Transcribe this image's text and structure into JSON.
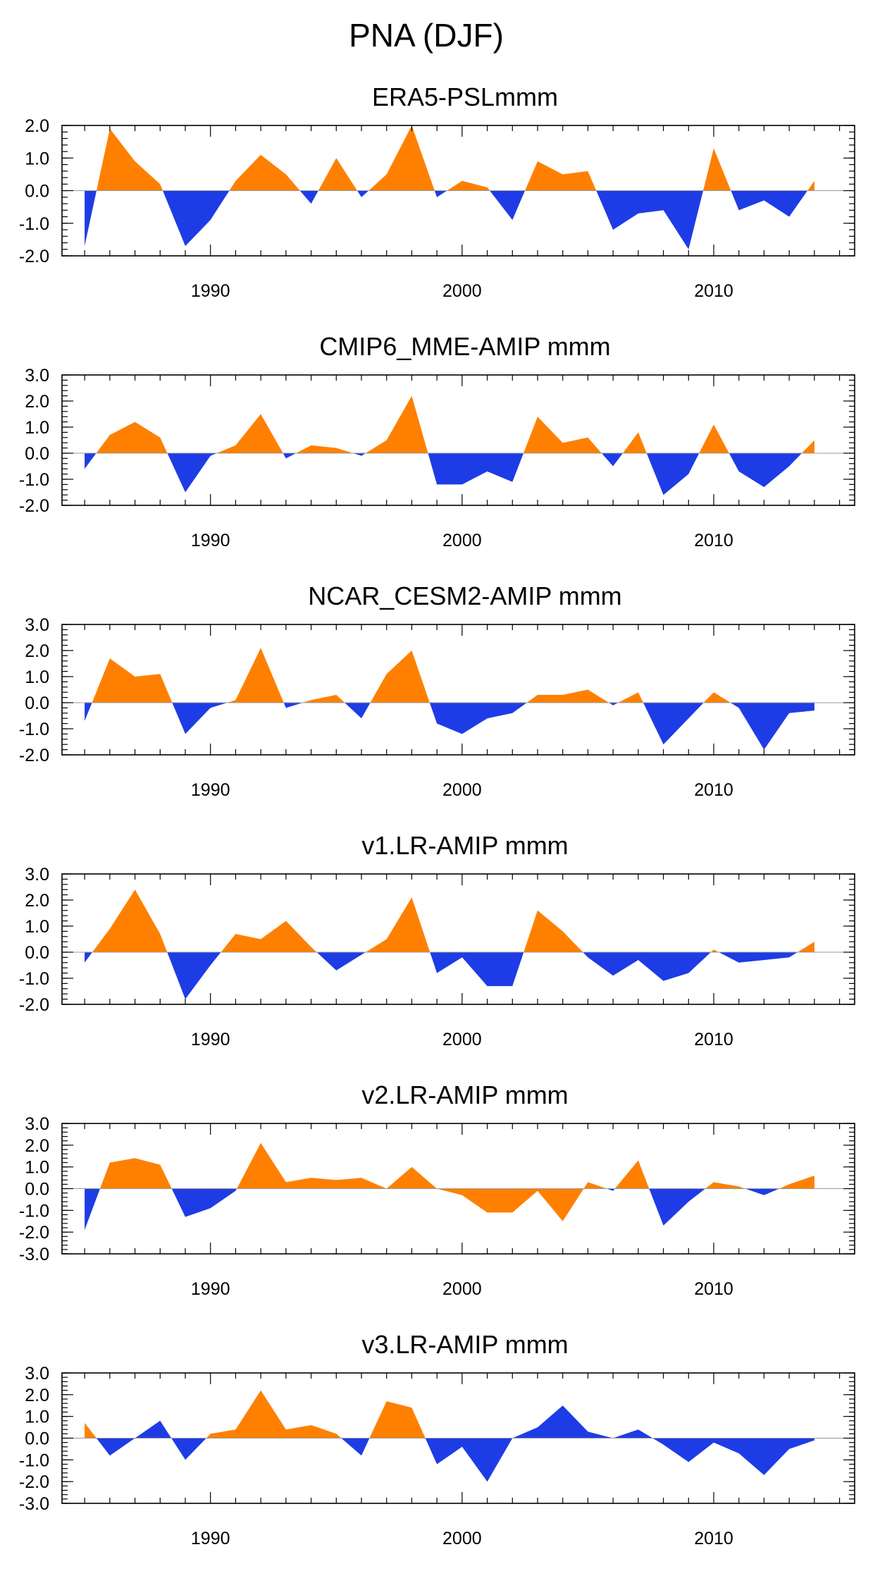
{
  "title": "PNA (DJF)",
  "colors": {
    "positive": "#FF8000",
    "negative": "#1E3CE6"
  },
  "chart_data": [
    {
      "type": "area",
      "title": "ERA5-PSLmmm",
      "x": [
        1985,
        1986,
        1987,
        1988,
        1989,
        1990,
        1991,
        1992,
        1993,
        1994,
        1995,
        1996,
        1997,
        1998,
        1999,
        2000,
        2001,
        2002,
        2003,
        2004,
        2005,
        2006,
        2007,
        2008,
        2009,
        2010,
        2011,
        2012,
        2013,
        2014
      ],
      "values": [
        -1.7,
        1.9,
        0.9,
        0.2,
        -1.7,
        -0.9,
        0.3,
        1.1,
        0.5,
        -0.4,
        1.0,
        -0.2,
        0.5,
        2.0,
        -0.2,
        0.3,
        0.1,
        -0.9,
        0.9,
        0.5,
        0.6,
        -1.2,
        -0.7,
        -0.6,
        -1.8,
        1.3,
        -0.6,
        -0.3,
        -0.8,
        0.3
      ],
      "ylim": [
        -2.0,
        2.0
      ],
      "yticks": [
        "2.0",
        "1.0",
        "0.0",
        "-1.0",
        "-2.0"
      ],
      "xticks": [
        "1990",
        "2000",
        "2010"
      ]
    },
    {
      "type": "area",
      "title": "CMIP6_MME-AMIP  mmm",
      "x": [
        1985,
        1986,
        1987,
        1988,
        1989,
        1990,
        1991,
        1992,
        1993,
        1994,
        1995,
        1996,
        1997,
        1998,
        1999,
        2000,
        2001,
        2002,
        2003,
        2004,
        2005,
        2006,
        2007,
        2008,
        2009,
        2010,
        2011,
        2012,
        2013,
        2014
      ],
      "values": [
        -0.6,
        0.7,
        1.2,
        0.6,
        -1.5,
        -0.1,
        0.3,
        1.5,
        -0.2,
        0.3,
        0.2,
        -0.1,
        0.5,
        2.2,
        -1.2,
        -1.2,
        -0.7,
        -1.1,
        1.4,
        0.4,
        0.6,
        -0.5,
        0.8,
        -1.6,
        -0.8,
        1.1,
        -0.7,
        -1.3,
        -0.5,
        0.5
      ],
      "ylim": [
        -2.0,
        3.0
      ],
      "yticks": [
        "3.0",
        "2.0",
        "1.0",
        "0.0",
        "-1.0",
        "-2.0"
      ],
      "xticks": [
        "1990",
        "2000",
        "2010"
      ]
    },
    {
      "type": "area",
      "title": "NCAR_CESM2-AMIP  mmm",
      "x": [
        1985,
        1986,
        1987,
        1988,
        1989,
        1990,
        1991,
        1992,
        1993,
        1994,
        1995,
        1996,
        1997,
        1998,
        1999,
        2000,
        2001,
        2002,
        2003,
        2004,
        2005,
        2006,
        2007,
        2008,
        2009,
        2010,
        2011,
        2012,
        2013,
        2014
      ],
      "values": [
        -0.7,
        1.7,
        1.0,
        1.1,
        -1.2,
        -0.2,
        0.1,
        2.1,
        -0.2,
        0.1,
        0.3,
        -0.6,
        1.1,
        2.0,
        -0.8,
        -1.2,
        -0.6,
        -0.4,
        0.3,
        0.3,
        0.5,
        -0.1,
        0.4,
        -1.6,
        -0.6,
        0.4,
        -0.2,
        -1.8,
        -0.4,
        -0.3
      ],
      "ylim": [
        -2.0,
        3.0
      ],
      "yticks": [
        "3.0",
        "2.0",
        "1.0",
        "0.0",
        "-1.0",
        "-2.0"
      ],
      "xticks": [
        "1990",
        "2000",
        "2010"
      ]
    },
    {
      "type": "area",
      "title": "v1.LR-AMIP  mmm",
      "x": [
        1985,
        1986,
        1987,
        1988,
        1989,
        1990,
        1991,
        1992,
        1993,
        1994,
        1995,
        1996,
        1997,
        1998,
        1999,
        2000,
        2001,
        2002,
        2003,
        2004,
        2005,
        2006,
        2007,
        2008,
        2009,
        2010,
        2011,
        2012,
        2013,
        2014
      ],
      "values": [
        -0.4,
        0.9,
        2.4,
        0.7,
        -1.8,
        -0.5,
        0.7,
        0.5,
        1.2,
        0.2,
        -0.7,
        -0.1,
        0.5,
        2.1,
        -0.8,
        -0.2,
        -1.3,
        -1.3,
        1.6,
        0.8,
        -0.2,
        -0.9,
        -0.3,
        -1.1,
        -0.8,
        0.1,
        -0.4,
        -0.3,
        -0.2,
        0.4
      ],
      "ylim": [
        -2.0,
        3.0
      ],
      "yticks": [
        "3.0",
        "2.0",
        "1.0",
        "0.0",
        "-1.0",
        "-2.0"
      ],
      "xticks": [
        "1990",
        "2000",
        "2010"
      ]
    },
    {
      "type": "area",
      "title": "v2.LR-AMIP  mmm",
      "x": [
        1985,
        1986,
        1987,
        1988,
        1989,
        1990,
        1991,
        1992,
        1993,
        1994,
        1995,
        1996,
        1997,
        1998,
        1999,
        2000,
        2001,
        2002,
        2003,
        2004,
        2005,
        2006,
        2007,
        2008,
        2009,
        2010,
        2011,
        2012,
        2013,
        2014
      ],
      "values": [
        -1.9,
        1.2,
        1.4,
        1.1,
        -1.3,
        -0.9,
        -0.1,
        2.1,
        0.3,
        0.5,
        0.4,
        0.5,
        0.0,
        1.0,
        0.0,
        -0.3,
        -1.1,
        -1.1,
        -0.1,
        -1.5,
        0.3,
        -0.1,
        1.3,
        -1.7,
        -0.6,
        0.3,
        0.1,
        -0.3,
        0.2,
        0.6
      ],
      "ylim": [
        -3.0,
        3.0
      ],
      "yticks": [
        "3.0",
        "2.0",
        "1.0",
        "0.0",
        "-1.0",
        "-2.0",
        "-3.0"
      ],
      "xticks": [
        "1990",
        "2000",
        "2010"
      ]
    },
    {
      "type": "area",
      "title": "v3.LR-AMIP  mmm",
      "x": [
        1985,
        1986,
        1987,
        1988,
        1989,
        1990,
        1991,
        1992,
        1993,
        1994,
        1995,
        1996,
        1997,
        1998,
        1999,
        2000,
        2001,
        2002,
        2003,
        2004,
        2005,
        2006,
        2007,
        2008,
        2009,
        2010,
        2011,
        2012,
        2013,
        2014
      ],
      "values": [
        0.7,
        -0.8,
        0.0,
        0.8,
        -1.0,
        0.2,
        0.4,
        2.2,
        0.4,
        0.6,
        0.2,
        -0.8,
        1.7,
        1.4,
        -1.2,
        -0.4,
        -2.0,
        0.0,
        0.5,
        1.5,
        0.3,
        0.0,
        0.4,
        -0.3,
        -1.1,
        -0.2,
        -0.7,
        -1.7,
        -0.5,
        -0.1
      ],
      "ylim": [
        -3.0,
        3.0
      ],
      "yticks": [
        "3.0",
        "2.0",
        "1.0",
        "0.0",
        "-1.0",
        "-2.0",
        "-3.0"
      ],
      "xticks": [
        "1990",
        "2000",
        "2010"
      ]
    }
  ]
}
